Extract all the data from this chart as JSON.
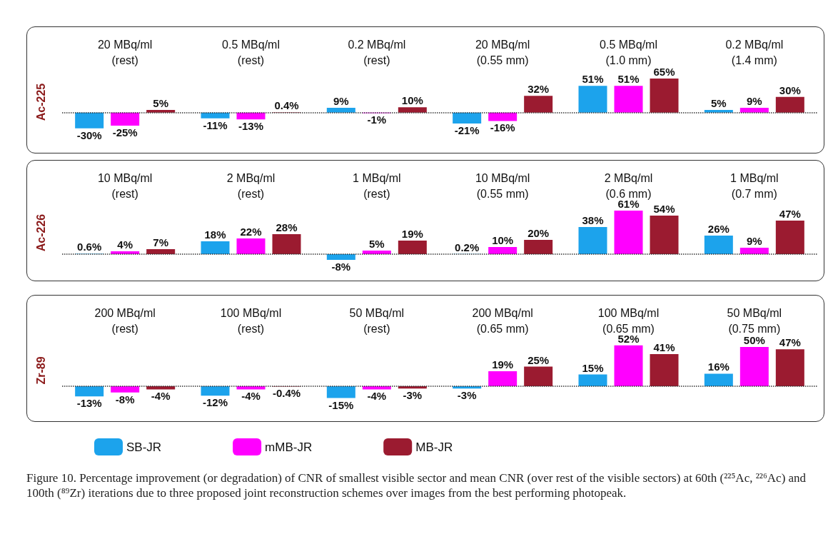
{
  "chart_data": [
    {
      "type": "bar",
      "ylabel": "Ac-225",
      "ref_lines": [
        {
          "axis": "y",
          "value": 0,
          "color": "#333333",
          "line_style": "dotted"
        }
      ],
      "categories": [
        "20 MBq/ml\n(rest)",
        "0.5 MBq/ml\n(rest)",
        "0.2 MBq/ml\n(rest)",
        "20 MBq/ml\n(0.55 mm)",
        "0.5 MBq/ml\n(1.0 mm)",
        "0.2 MBq/ml\n(1.4 mm)"
      ],
      "series": [
        {
          "color": "#1ca3ec",
          "values": [
            -30,
            -11,
            9,
            -21,
            51,
            5
          ],
          "value_labels": [
            "-30%",
            "-11%",
            "9%",
            "-21%",
            "51%",
            "5%"
          ]
        },
        {
          "color": "#ff00ff",
          "values": [
            -25,
            -13,
            -1,
            -16,
            51,
            9
          ],
          "value_labels": [
            "-25%",
            "-13%",
            "-1%",
            "-16%",
            "51%",
            "9%"
          ]
        },
        {
          "color": "#9b1b30",
          "values": [
            5,
            0.4,
            10,
            32,
            65,
            30
          ],
          "value_labels": [
            "5%",
            "0.4%",
            "10%",
            "32%",
            "65%",
            "30%"
          ]
        }
      ]
    },
    {
      "type": "bar",
      "ylabel": "Ac-226",
      "ref_lines": [
        {
          "axis": "y",
          "value": 0,
          "color": "#333333",
          "line_style": "dotted"
        }
      ],
      "categories": [
        "10 MBq/ml\n(rest)",
        "2 MBq/ml\n(rest)",
        "1 MBq/ml\n(rest)",
        "10 MBq/ml\n(0.55 mm)",
        "2 MBq/ml\n(0.6 mm)",
        "1 MBq/ml\n(0.7 mm)"
      ],
      "series": [
        {
          "color": "#1ca3ec",
          "values": [
            0.6,
            18,
            -8,
            0.2,
            38,
            26
          ],
          "value_labels": [
            "0.6%",
            "18%",
            "-8%",
            "0.2%",
            "38%",
            "26%"
          ]
        },
        {
          "color": "#ff00ff",
          "values": [
            4,
            22,
            5,
            10,
            61,
            9
          ],
          "value_labels": [
            "4%",
            "22%",
            "5%",
            "10%",
            "61%",
            "9%"
          ]
        },
        {
          "color": "#9b1b30",
          "values": [
            7,
            28,
            19,
            20,
            54,
            47
          ],
          "value_labels": [
            "7%",
            "28%",
            "19%",
            "20%",
            "54%",
            "47%"
          ]
        }
      ]
    },
    {
      "type": "bar",
      "ylabel": "Zr-89",
      "ref_lines": [
        {
          "axis": "y",
          "value": 0,
          "color": "#333333",
          "line_style": "dotted"
        }
      ],
      "categories": [
        "200 MBq/ml\n(rest)",
        "100 MBq/ml\n(rest)",
        "50 MBq/ml\n(rest)",
        "200 MBq/ml\n(0.65 mm)",
        "100 MBq/ml\n(0.65 mm)",
        "50 MBq/ml\n(0.75 mm)"
      ],
      "legend": "bottom",
      "series": [
        {
          "name": "SB-JR",
          "color": "#1ca3ec",
          "values": [
            -13,
            -12,
            -15,
            -3,
            15,
            16
          ],
          "value_labels": [
            "-13%",
            "-12%",
            "-15%",
            "-3%",
            "15%",
            "16%"
          ]
        },
        {
          "name": "mMB-JR",
          "color": "#ff00ff",
          "values": [
            -8,
            -4,
            -4,
            19,
            52,
            50
          ],
          "value_labels": [
            "-8%",
            "-4%",
            "-4%",
            "19%",
            "52%",
            "50%"
          ]
        },
        {
          "name": "MB-JR",
          "color": "#9b1b30",
          "values": [
            -4,
            -0.4,
            -3,
            25,
            41,
            47
          ],
          "value_labels": [
            "-4%",
            "-0.4%",
            "-3%",
            "25%",
            "41%",
            "47%"
          ]
        }
      ],
      "annotations": [
        "Figure 10. Percentage improvement (or degradation) of CNR of smallest visible sector and mean CNR (over rest of the visible sectors) at 60th (²²⁵Ac, ²²⁶Ac) and 100th (⁸⁹Zr) iterations due to three proposed joint reconstruction schemes over images from the best performing photopeak."
      ]
    }
  ]
}
